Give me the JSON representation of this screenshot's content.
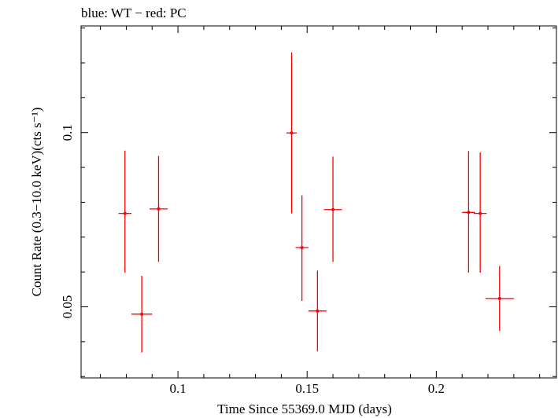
{
  "chart_data": {
    "type": "scatter",
    "title": "blue: WT − red: PC",
    "xlabel": "Time Since 55369.0 MJD (days)",
    "ylabel": "Count Rate (0.3−10.0 keV)(cts s⁻¹)",
    "xlim": [
      0.0625,
      0.2465
    ],
    "ylim": [
      0.0296,
      0.1306
    ],
    "x_ticks": [
      {
        "value": 0.1,
        "label": "0.1"
      },
      {
        "value": 0.15,
        "label": "0.15"
      },
      {
        "value": 0.2,
        "label": "0.2"
      }
    ],
    "y_ticks": [
      {
        "value": 0.05,
        "label": "0.05"
      },
      {
        "value": 0.1,
        "label": "0.1"
      }
    ],
    "grid": false,
    "series": [
      {
        "name": "PC",
        "color": "#ff0000",
        "points": [
          {
            "x": 0.0795,
            "y": 0.0768,
            "xerr": 0.0025,
            "ylo": 0.0598,
            "yhi": 0.0948
          },
          {
            "x": 0.086,
            "y": 0.0479,
            "xerr": 0.004,
            "ylo": 0.0369,
            "yhi": 0.0589
          },
          {
            "x": 0.0925,
            "y": 0.0781,
            "xerr": 0.0035,
            "ylo": 0.0629,
            "yhi": 0.0933
          },
          {
            "x": 0.144,
            "y": 0.0999,
            "xerr": 0.002,
            "ylo": 0.0768,
            "yhi": 0.123
          },
          {
            "x": 0.148,
            "y": 0.067,
            "xerr": 0.0025,
            "ylo": 0.0517,
            "yhi": 0.082
          },
          {
            "x": 0.154,
            "y": 0.0488,
            "xerr": 0.0035,
            "ylo": 0.0372,
            "yhi": 0.0604
          },
          {
            "x": 0.16,
            "y": 0.0779,
            "xerr": 0.0035,
            "ylo": 0.0629,
            "yhi": 0.0931
          },
          {
            "x": 0.2125,
            "y": 0.0771,
            "xerr": 0.0025,
            "ylo": 0.0598,
            "yhi": 0.0947
          },
          {
            "x": 0.217,
            "y": 0.0768,
            "xerr": 0.0025,
            "ylo": 0.0598,
            "yhi": 0.0943
          },
          {
            "x": 0.2245,
            "y": 0.0524,
            "xerr": 0.0055,
            "ylo": 0.0431,
            "yhi": 0.0617
          }
        ]
      }
    ]
  }
}
